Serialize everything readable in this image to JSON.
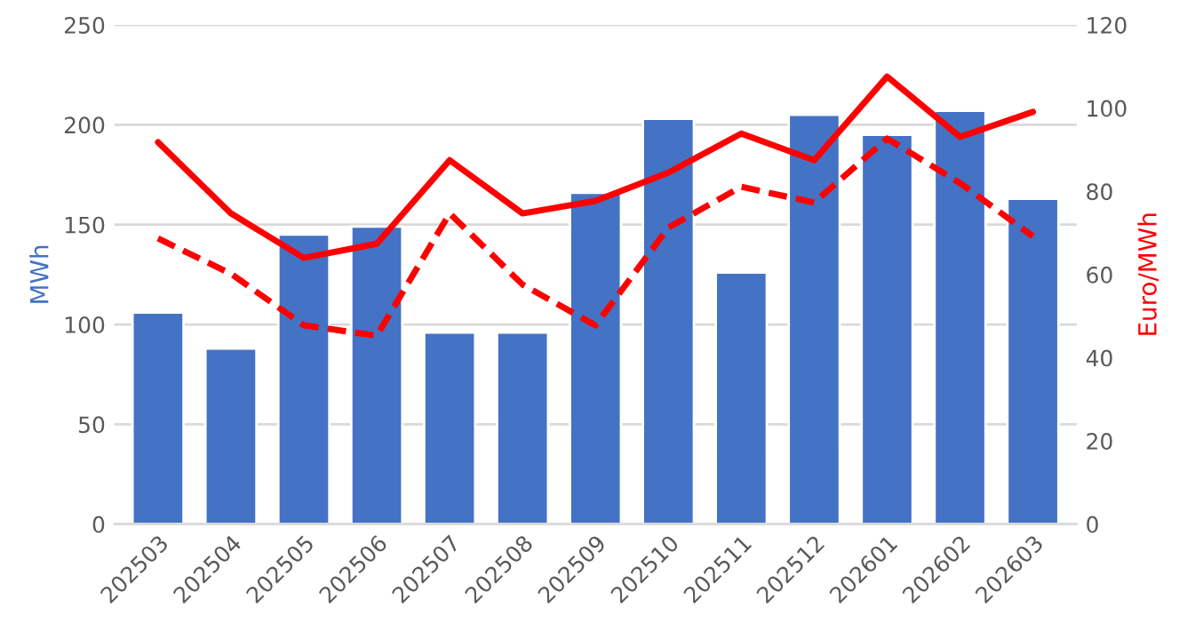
{
  "chart_data": {
    "type": "bar",
    "ylabel": "MWh",
    "y2label": "Euro/MWh",
    "categories": [
      "202503",
      "202504",
      "202505",
      "202506",
      "202507",
      "202508",
      "202509",
      "202510",
      "202511",
      "202512",
      "202601",
      "202602",
      "202603"
    ],
    "series": [
      {
        "color": "#4472c4",
        "values": [
          106,
          88,
          145,
          149,
          96,
          96,
          166,
          203,
          126,
          205,
          195,
          207,
          163
        ]
      },
      {
        "type": "line",
        "axis": "y2",
        "color": "#ff0000",
        "line_style": "solid",
        "values": [
          91.8,
          74.7,
          64.0,
          67.4,
          87.5,
          74.7,
          77.7,
          84.5,
          93.9,
          87.5,
          107.6,
          93.1,
          99.1
        ]
      },
      {
        "type": "line",
        "axis": "y2",
        "color": "#ff0000",
        "line_style": "dashed",
        "values": [
          68.7,
          60.2,
          47.8,
          45.3,
          74.7,
          57.6,
          47.8,
          71.3,
          81.1,
          77.3,
          92.7,
          82.0,
          69.2
        ]
      }
    ],
    "ylim": [
      0,
      250
    ],
    "yticks": [
      0,
      50,
      100,
      150,
      200,
      250
    ],
    "y2lim": [
      0,
      120
    ],
    "y2ticks": [
      0,
      20,
      40,
      60,
      80,
      100,
      120
    ],
    "grid": "y"
  }
}
